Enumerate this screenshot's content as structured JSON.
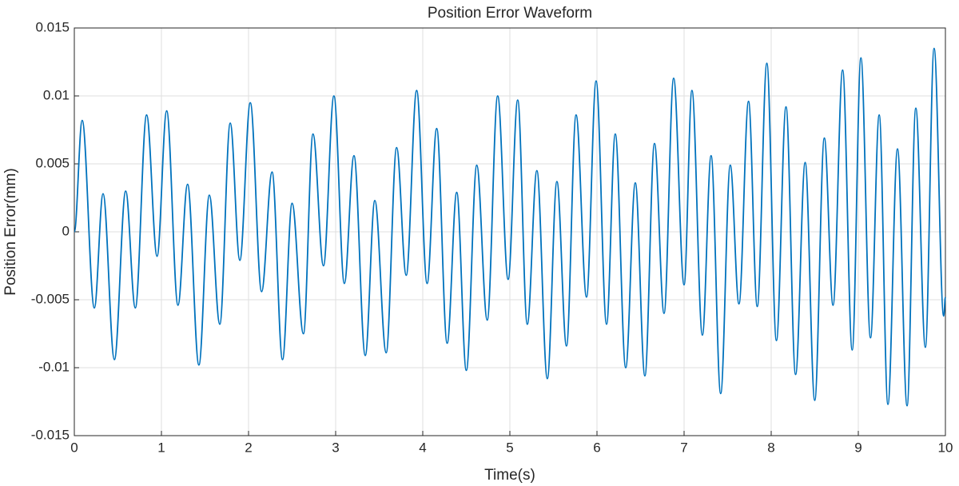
{
  "chart_data": {
    "type": "line",
    "title": "Position Error Waveform",
    "x_label": "Time(s)",
    "y_label": "Position Error(mm)",
    "x": [
      0,
      0.09,
      0.23,
      0.33,
      0.46,
      0.59,
      0.7,
      0.83,
      0.95,
      1.06,
      1.19,
      1.3,
      1.43,
      1.55,
      1.67,
      1.79,
      1.9,
      2.02,
      2.15,
      2.27,
      2.39,
      2.5,
      2.63,
      2.74,
      2.86,
      2.98,
      3.1,
      3.21,
      3.34,
      3.45,
      3.58,
      3.7,
      3.81,
      3.93,
      4.05,
      4.16,
      4.28,
      4.39,
      4.5,
      4.62,
      4.74,
      4.86,
      4.98,
      5.09,
      5.2,
      5.31,
      5.43,
      5.54,
      5.65,
      5.76,
      5.88,
      5.99,
      6.11,
      6.21,
      6.33,
      6.44,
      6.55,
      6.66,
      6.77,
      6.88,
      7.0,
      7.09,
      7.21,
      7.31,
      7.42,
      7.53,
      7.63,
      7.74,
      7.84,
      7.95,
      8.06,
      8.17,
      8.28,
      8.39,
      8.5,
      8.61,
      8.71,
      8.82,
      8.93,
      9.03,
      9.14,
      9.24,
      9.34,
      9.45,
      9.56,
      9.66,
      9.77,
      9.87,
      9.98,
      10
    ],
    "series": [
      {
        "name": "Position Error",
        "color": "#0072bd",
        "values": [
          0,
          0.0082,
          -0.0056,
          0.0028,
          -0.0094,
          0.003,
          -0.0056,
          0.0086,
          -0.0018,
          0.0089,
          -0.0054,
          0.0035,
          -0.0098,
          0.0027,
          -0.0068,
          0.008,
          -0.0021,
          0.0095,
          -0.0044,
          0.0044,
          -0.0094,
          0.0021,
          -0.0075,
          0.0072,
          -0.0025,
          0.01,
          -0.0038,
          0.0056,
          -0.0091,
          0.0023,
          -0.0089,
          0.0062,
          -0.0032,
          0.0104,
          -0.0038,
          0.0076,
          -0.0082,
          0.0029,
          -0.0102,
          0.0049,
          -0.0065,
          0.01,
          -0.0035,
          0.0097,
          -0.0068,
          0.0045,
          -0.0108,
          0.0037,
          -0.0084,
          0.0086,
          -0.0048,
          0.0111,
          -0.0068,
          0.0072,
          -0.01,
          0.0036,
          -0.0106,
          0.0065,
          -0.006,
          0.0113,
          -0.0039,
          0.0104,
          -0.0076,
          0.0056,
          -0.0119,
          0.0049,
          -0.0053,
          0.0096,
          -0.0055,
          0.0124,
          -0.008,
          0.0092,
          -0.0105,
          0.0051,
          -0.0124,
          0.0069,
          -0.0054,
          0.0119,
          -0.0087,
          0.0128,
          -0.0078,
          0.0086,
          -0.0127,
          0.0061,
          -0.0128,
          0.0091,
          -0.0085,
          0.0135,
          -0.0062,
          -0.0048
        ]
      }
    ],
    "xlim": [
      0,
      10
    ],
    "xticks": [
      0,
      1,
      2,
      3,
      4,
      5,
      6,
      7,
      8,
      9,
      10
    ],
    "ylim": [
      -0.015,
      0.015
    ],
    "yticks": [
      -0.015,
      -0.01,
      -0.005,
      0,
      0.005,
      0.01,
      0.015
    ],
    "grid": true
  }
}
